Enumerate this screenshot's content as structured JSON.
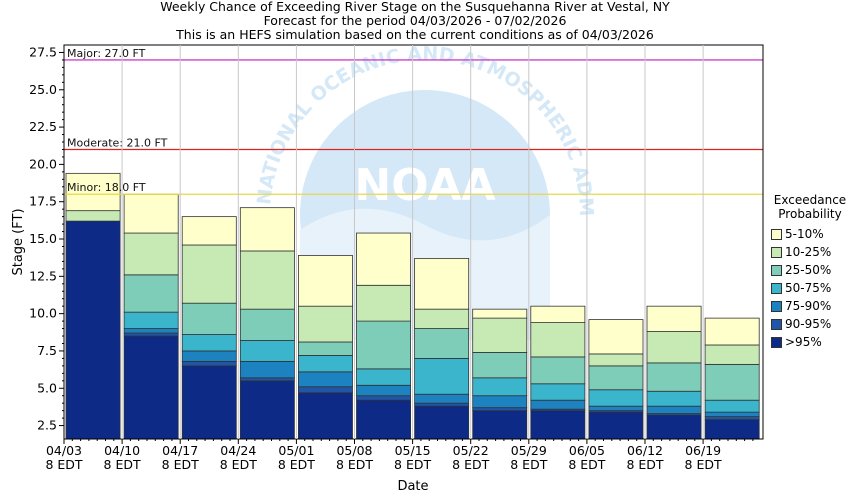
{
  "title": {
    "line1": "Weekly Chance of Exceeding River Stage on the Susquehanna River at Vestal, NY",
    "line2": "Forecast for the period 04/03/2026 - 07/02/2026",
    "line3": "This is an HEFS simulation based on the current conditions as of 04/03/2026"
  },
  "watermark": {
    "text": "NATIONAL OCEANIC AND ATMOSPHERIC ADMINISTRATION",
    "logo": "NOAA"
  },
  "colors": {
    "p95": "#0c2a86",
    "p90_95": "#1f56a8",
    "p75_90": "#1d82c0",
    "p50_75": "#3bb5cc",
    "p25_50": "#7dcdb8",
    "p10_25": "#c7e9b4",
    "p5_10": "#ffffcc",
    "major_line": "#cc44cc",
    "moderate_line": "#dd2222",
    "minor_line": "#e8d84a"
  },
  "legend": {
    "title_line1": "Exceedance",
    "title_line2": "Probability",
    "items": [
      {
        "label": "5-10%",
        "color": "#ffffcc"
      },
      {
        "label": "10-25%",
        "color": "#c7e9b4"
      },
      {
        "label": "25-50%",
        "color": "#7dcdb8"
      },
      {
        "label": "50-75%",
        "color": "#3bb5cc"
      },
      {
        "label": "75-90%",
        "color": "#1d82c0"
      },
      {
        "label": "90-95%",
        "color": "#1f56a8"
      },
      {
        "label": ">95%",
        "color": "#0c2a86"
      }
    ]
  },
  "chart_data": {
    "type": "bar",
    "stacked": true,
    "xlabel": "Date",
    "ylabel": "Stage (FT)",
    "ylim": [
      1.6,
      28.0
    ],
    "yticks": [
      "2.5",
      "5.0",
      "7.5",
      "10.0",
      "12.5",
      "15.0",
      "17.5",
      "20.0",
      "22.5",
      "25.0",
      "27.5"
    ],
    "ytick_values": [
      2.5,
      5.0,
      7.5,
      10.0,
      12.5,
      15.0,
      17.5,
      20.0,
      22.5,
      25.0,
      27.5
    ],
    "xticks": [
      {
        "date": "04/03",
        "tz": "8 EDT"
      },
      {
        "date": "04/10",
        "tz": "8 EDT"
      },
      {
        "date": "04/17",
        "tz": "8 EDT"
      },
      {
        "date": "04/24",
        "tz": "8 EDT"
      },
      {
        "date": "05/01",
        "tz": "8 EDT"
      },
      {
        "date": "05/08",
        "tz": "8 EDT"
      },
      {
        "date": "05/15",
        "tz": "8 EDT"
      },
      {
        "date": "05/22",
        "tz": "8 EDT"
      },
      {
        "date": "05/29",
        "tz": "8 EDT"
      },
      {
        "date": "06/05",
        "tz": "8 EDT"
      },
      {
        "date": "06/12",
        "tz": "8 EDT"
      },
      {
        "date": "06/19",
        "tz": "8 EDT"
      }
    ],
    "flood_stages": [
      {
        "label": "Major: 27.0 FT",
        "value": 27.0,
        "color": "#cc44cc"
      },
      {
        "label": "Moderate: 21.0 FT",
        "value": 21.0,
        "color": "#dd2222"
      },
      {
        "label": "Minor: 18.0 FT",
        "value": 18.0,
        "color": "#e8d84a"
      }
    ],
    "series_order": [
      ">95%",
      "90-95%",
      "75-90%",
      "50-75%",
      "25-50%",
      "10-25%",
      "5-10%"
    ],
    "weeks": [
      {
        "week": "04/03",
        "bounds": [
          16.2,
          16.2,
          16.2,
          16.2,
          16.2,
          16.9,
          19.4
        ]
      },
      {
        "week": "04/10",
        "bounds": [
          8.5,
          8.7,
          9.0,
          10.1,
          12.6,
          15.4,
          18.0
        ]
      },
      {
        "week": "04/17",
        "bounds": [
          6.5,
          6.8,
          7.5,
          8.6,
          10.7,
          14.6,
          16.5
        ]
      },
      {
        "week": "04/24",
        "bounds": [
          5.5,
          5.7,
          6.8,
          8.2,
          10.3,
          14.2,
          17.1
        ]
      },
      {
        "week": "05/01",
        "bounds": [
          4.7,
          5.1,
          6.1,
          7.2,
          8.1,
          10.5,
          13.9
        ]
      },
      {
        "week": "05/08",
        "bounds": [
          4.2,
          4.5,
          5.2,
          6.3,
          9.5,
          11.9,
          15.4
        ]
      },
      {
        "week": "05/15",
        "bounds": [
          3.8,
          4.0,
          4.6,
          7.0,
          9.0,
          10.3,
          13.7
        ]
      },
      {
        "week": "05/22",
        "bounds": [
          3.5,
          3.7,
          4.5,
          5.7,
          7.4,
          9.7,
          10.3
        ]
      },
      {
        "week": "05/29",
        "bounds": [
          3.5,
          3.6,
          4.2,
          5.3,
          7.1,
          9.4,
          10.5
        ]
      },
      {
        "week": "06/05",
        "bounds": [
          3.4,
          3.5,
          3.8,
          4.9,
          6.5,
          7.3,
          9.6
        ]
      },
      {
        "week": "06/12",
        "bounds": [
          3.2,
          3.3,
          3.8,
          4.8,
          6.7,
          8.8,
          10.5
        ]
      },
      {
        "week": "06/19",
        "bounds": [
          2.9,
          3.1,
          3.4,
          4.2,
          6.6,
          7.9,
          9.7
        ]
      }
    ]
  }
}
